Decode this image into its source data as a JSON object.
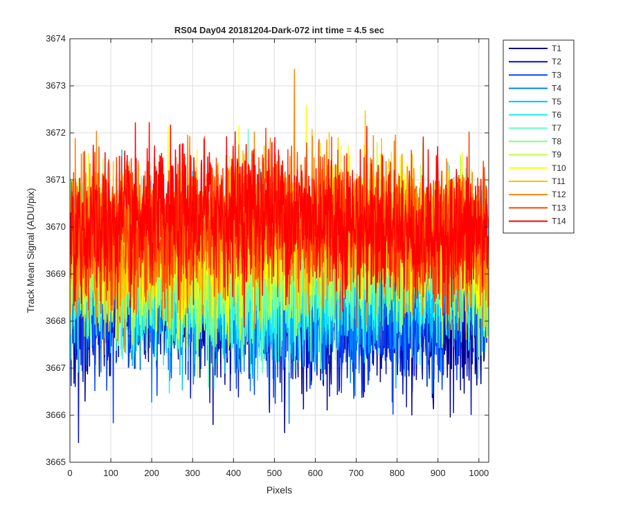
{
  "chart_data": {
    "type": "line",
    "title": "RS04 Day04 20181204-Dark-072 int time = 4.5 sec",
    "xlabel": "Pixels",
    "ylabel": "Track Mean Signal (ADU/pix)",
    "xlim": [
      0,
      1024
    ],
    "ylim": [
      3665,
      3674
    ],
    "xticks": [
      0,
      100,
      200,
      300,
      400,
      500,
      600,
      700,
      800,
      900,
      1000
    ],
    "yticks": [
      3665,
      3666,
      3667,
      3668,
      3669,
      3670,
      3671,
      3672,
      3673,
      3674
    ],
    "grid": true,
    "legend_position": "outside-top-right",
    "x_range_samples": 1024,
    "series": [
      {
        "name": "T1",
        "color": "#00008f",
        "mean": 3668.2,
        "noise": 0.75
      },
      {
        "name": "T2",
        "color": "#0010c8",
        "mean": 3668.3,
        "noise": 0.75
      },
      {
        "name": "T3",
        "color": "#0040ff",
        "mean": 3668.4,
        "noise": 0.75
      },
      {
        "name": "T4",
        "color": "#0080ff",
        "mean": 3668.6,
        "noise": 0.75
      },
      {
        "name": "T5",
        "color": "#00bfff",
        "mean": 3668.8,
        "noise": 0.75
      },
      {
        "name": "T6",
        "color": "#20efef",
        "mean": 3668.9,
        "noise": 0.75
      },
      {
        "name": "T7",
        "color": "#60ffbf",
        "mean": 3669.1,
        "noise": 0.75
      },
      {
        "name": "T8",
        "color": "#80ff80",
        "mean": 3669.3,
        "noise": 0.75
      },
      {
        "name": "T9",
        "color": "#bfff40",
        "mean": 3669.5,
        "noise": 0.75
      },
      {
        "name": "T10",
        "color": "#ffff00",
        "mean": 3669.7,
        "noise": 0.75
      },
      {
        "name": "T11",
        "color": "#ffbf00",
        "mean": 3669.8,
        "noise": 0.75
      },
      {
        "name": "T12",
        "color": "#ff8000",
        "mean": 3669.9,
        "noise": 0.75
      },
      {
        "name": "T13",
        "color": "#ff4000",
        "mean": 3670.0,
        "noise": 0.75
      },
      {
        "name": "T14",
        "color": "#ff0000",
        "mean": 3670.1,
        "noise": 0.75
      }
    ]
  }
}
